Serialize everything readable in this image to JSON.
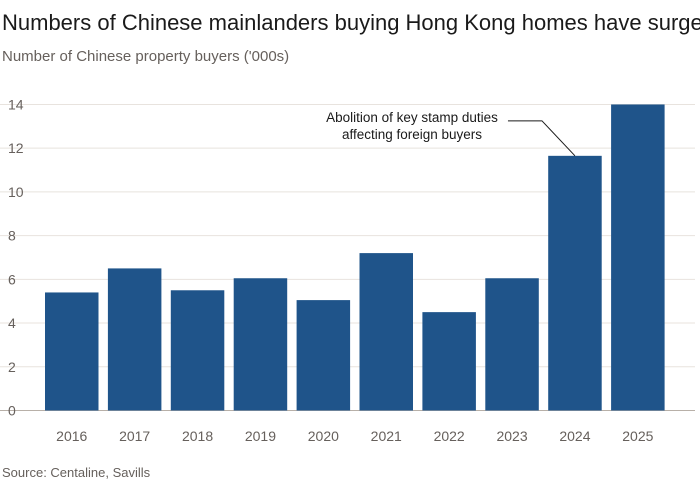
{
  "title": "Numbers of Chinese mainlanders buying Hong Kong homes have surged",
  "subtitle": "Number of Chinese property buyers ('000s)",
  "source": "Source: Centaline, Savills",
  "chart_data": {
    "type": "bar",
    "categories": [
      "2016",
      "2017",
      "2018",
      "2019",
      "2020",
      "2021",
      "2022",
      "2023",
      "2024",
      "2025"
    ],
    "values": [
      5.4,
      6.5,
      5.5,
      6.05,
      5.05,
      7.2,
      4.5,
      6.05,
      11.65,
      14.0
    ],
    "ylim": [
      0,
      14
    ],
    "yticks": [
      0,
      2,
      4,
      6,
      8,
      10,
      12,
      14
    ],
    "grid": true,
    "bar_color": "#1f548a",
    "annotation": {
      "lines": [
        "Abolition of key stamp duties",
        "affecting foreign buyers"
      ],
      "category": "2024"
    }
  }
}
